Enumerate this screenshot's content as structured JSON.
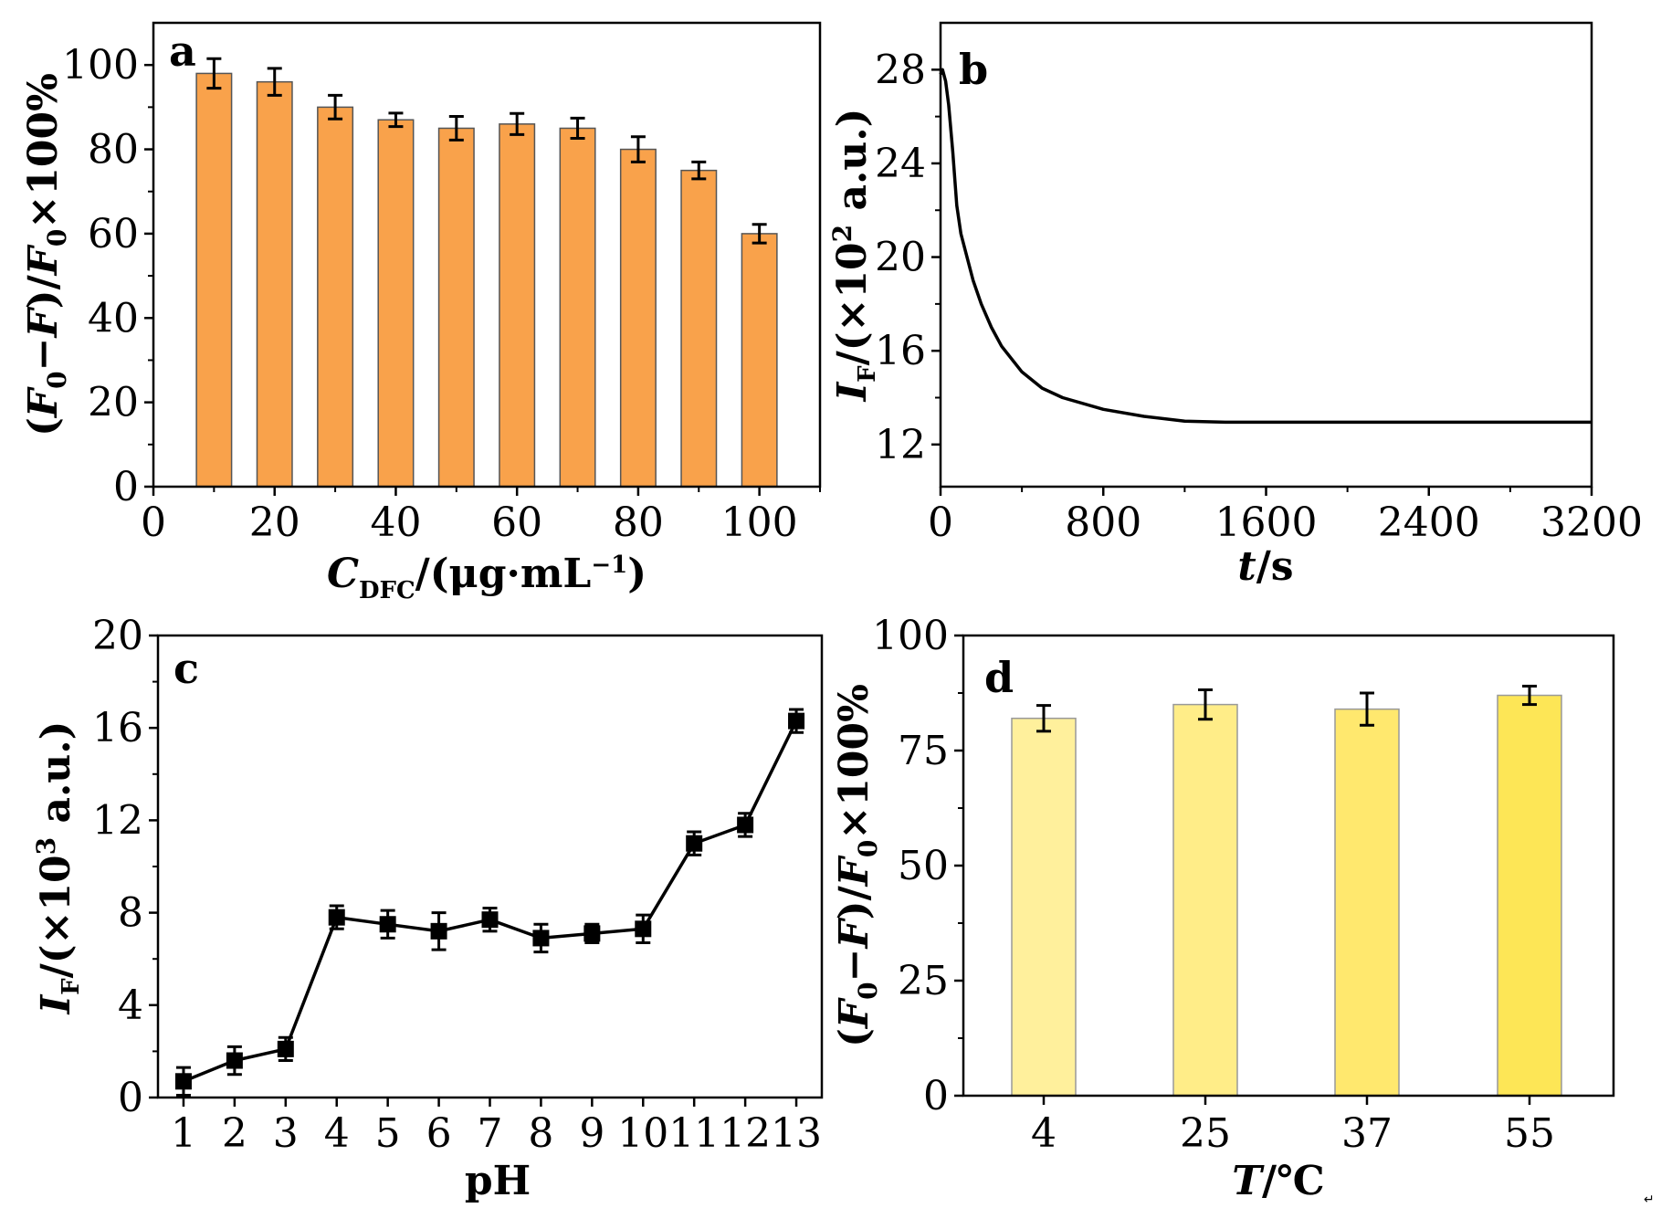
{
  "figure": {
    "corner_mark": "↵"
  },
  "chart_data": [
    {
      "id": "a",
      "panel_label": "a",
      "type": "bar",
      "categories": [
        10,
        20,
        30,
        40,
        50,
        60,
        70,
        80,
        90,
        100
      ],
      "values": [
        98,
        96,
        90,
        87,
        85,
        86,
        85,
        80,
        75,
        60
      ],
      "errors": [
        3.5,
        3.2,
        2.8,
        1.6,
        2.8,
        2.5,
        2.4,
        3.0,
        2.0,
        2.2
      ],
      "bar_color": "#f9a24b",
      "xlabel": "C_DFC/(μg·mL⁻¹)",
      "ylabel": "(F₀−F)/F₀×100%",
      "xlim": [
        0,
        110
      ],
      "ylim": [
        0,
        110
      ],
      "xticks": [
        "0",
        "20",
        "40",
        "60",
        "80",
        "100"
      ],
      "yticks": [
        "0",
        "20",
        "40",
        "60",
        "80",
        "100"
      ]
    },
    {
      "id": "b",
      "panel_label": "b",
      "type": "line",
      "x": [
        0,
        10,
        25,
        40,
        60,
        80,
        100,
        130,
        160,
        200,
        250,
        300,
        400,
        500,
        600,
        800,
        1000,
        1200,
        1400,
        1600,
        2000,
        2400,
        2800,
        3200
      ],
      "y": [
        27.8,
        28.0,
        27.5,
        26.5,
        24.5,
        22.2,
        21.0,
        20.0,
        19.0,
        18.0,
        17.0,
        16.2,
        15.1,
        14.4,
        14.0,
        13.5,
        13.2,
        13.0,
        12.95,
        12.95,
        12.95,
        12.95,
        12.95,
        12.95
      ],
      "line_color": "#000000",
      "xlabel": "t/s",
      "ylabel": "I_F/(×10² a.u.)",
      "xlim": [
        0,
        3200
      ],
      "ylim": [
        10.2,
        30
      ],
      "xticks": [
        "0",
        "800",
        "1600",
        "2400",
        "3200"
      ],
      "yticks": [
        "12",
        "16",
        "20",
        "24",
        "28"
      ]
    },
    {
      "id": "c",
      "panel_label": "c",
      "type": "line",
      "x": [
        1,
        2,
        3,
        4,
        5,
        6,
        7,
        8,
        9,
        10,
        11,
        12,
        13
      ],
      "y": [
        0.7,
        1.6,
        2.1,
        7.8,
        7.5,
        7.2,
        7.7,
        6.9,
        7.1,
        7.3,
        11.0,
        11.8,
        16.3
      ],
      "errors": [
        0.6,
        0.6,
        0.5,
        0.5,
        0.6,
        0.8,
        0.5,
        0.6,
        0.4,
        0.6,
        0.5,
        0.5,
        0.5
      ],
      "marker": "square",
      "line_color": "#000000",
      "xlabel": "pH",
      "ylabel": "I_F/(×10³ a.u.)",
      "xlim": [
        0.5,
        13.5
      ],
      "ylim": [
        0,
        20
      ],
      "xticks": [
        "1",
        "2",
        "3",
        "4",
        "5",
        "6",
        "7",
        "8",
        "9",
        "10",
        "11",
        "12",
        "13"
      ],
      "yticks": [
        "0",
        "4",
        "8",
        "12",
        "16",
        "20"
      ]
    },
    {
      "id": "d",
      "panel_label": "d",
      "type": "bar",
      "categories": [
        "4",
        "25",
        "37",
        "55"
      ],
      "values": [
        82,
        85,
        84,
        87
      ],
      "errors": [
        2.8,
        3.2,
        3.5,
        2.0
      ],
      "bar_colors": [
        "#fff09c",
        "#ffed88",
        "#ffe86e",
        "#fde656"
      ],
      "xlabel": "T/℃",
      "ylabel": "(F₀−F)/F₀×100%",
      "ylim": [
        0,
        100
      ],
      "yticks": [
        "0",
        "25",
        "50",
        "75",
        "100"
      ]
    }
  ]
}
